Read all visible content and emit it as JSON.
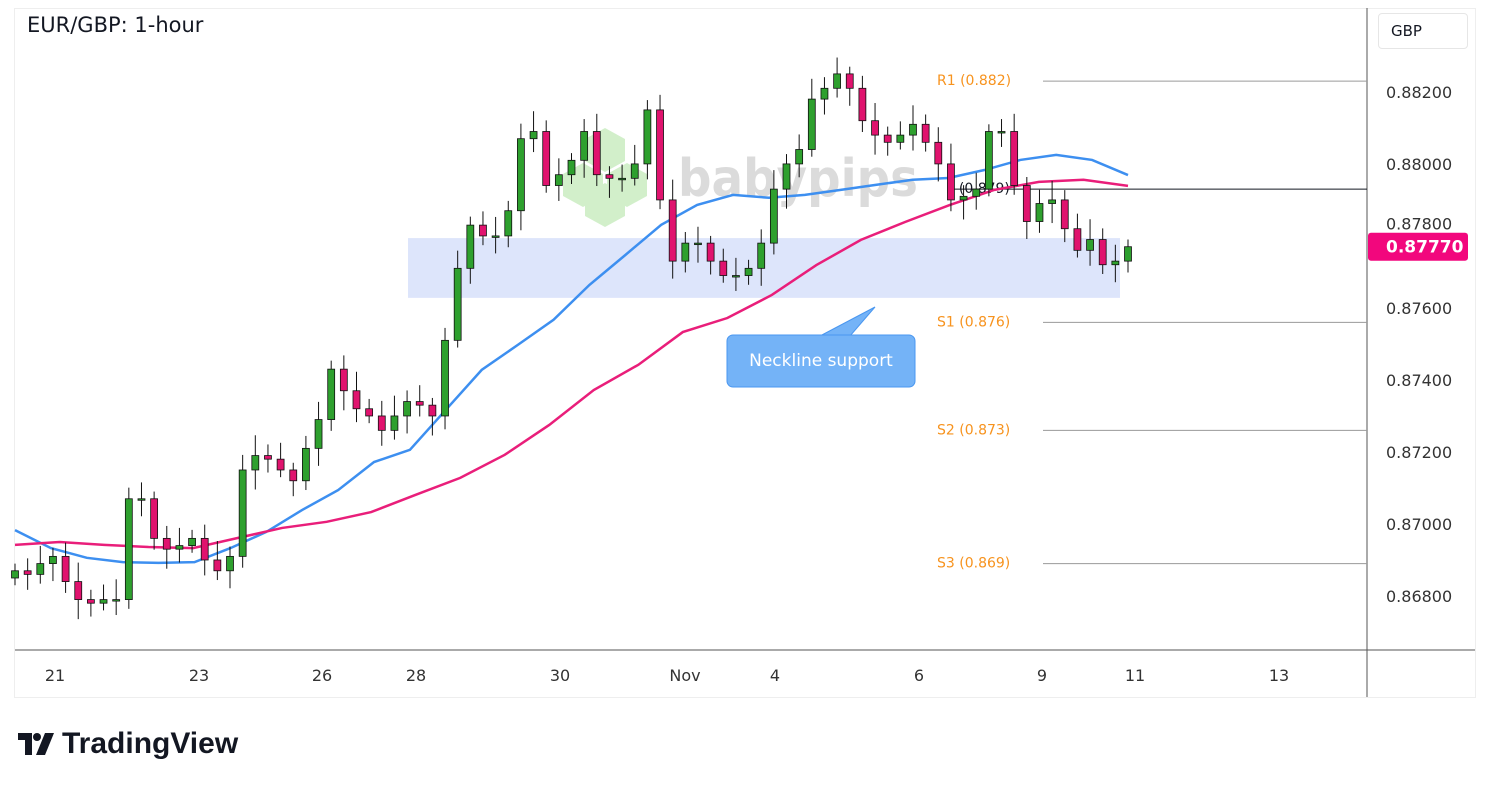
{
  "header": {
    "title": "EUR/GBP: 1-hour",
    "currency": "GBP"
  },
  "watermark": "babypips",
  "logo": {
    "text": "TradingView"
  },
  "chart_data": {
    "type": "candlestick",
    "title": "EUR/GBP: 1-hour",
    "ylim": [
      0.8665,
      0.88433
    ],
    "y_ticks": [
      "0.88200",
      "0.88000",
      "0.87800",
      "0.87600",
      "0.87400",
      "0.87200",
      "0.87000",
      "0.86800"
    ],
    "y_tick_values": [
      0.882,
      0.88,
      0.878,
      0.876,
      0.874,
      0.872,
      0.87,
      0.868
    ],
    "x_ticks": [
      "21",
      "23",
      "26",
      "28",
      "30",
      "Nov",
      "4",
      "6",
      "9",
      "11",
      "13"
    ],
    "closes": [
      0.8687,
      0.8686,
      0.8689,
      0.8691,
      0.8684,
      0.8679,
      0.8678,
      0.8679,
      0.8679,
      0.8707,
      0.8707,
      0.8696,
      0.8693,
      0.8694,
      0.8696,
      0.869,
      0.8687,
      0.8691,
      0.8715,
      0.8719,
      0.8718,
      0.8715,
      0.8712,
      0.8721,
      0.8729,
      0.8743,
      0.8737,
      0.8732,
      0.873,
      0.8726,
      0.873,
      0.8734,
      0.8733,
      0.873,
      0.8751,
      0.8771,
      0.8783,
      0.878,
      0.878,
      0.8787,
      0.8807,
      0.8809,
      0.8794,
      0.8797,
      0.8801,
      0.8809,
      0.8797,
      0.8796,
      0.8796,
      0.88,
      0.8815,
      0.879,
      0.8773,
      0.8778,
      0.8778,
      0.8773,
      0.8769,
      0.8769,
      0.8771,
      0.8778,
      0.8793,
      0.88,
      0.8804,
      0.8818,
      0.8821,
      0.8825,
      0.8821,
      0.8812,
      0.8808,
      0.8806,
      0.8808,
      0.8811,
      0.8806,
      0.88,
      0.879,
      0.8791,
      0.8793,
      0.8809,
      0.8809,
      0.8794,
      0.8784,
      0.8789,
      0.879,
      0.8782,
      0.8776,
      0.8779,
      0.8772,
      0.8773,
      0.8777
    ],
    "moving_averages": [
      {
        "color": "#3d8ff0",
        "values": [
          0.86983,
          0.86933,
          0.86906,
          0.86894,
          0.86892,
          0.86894,
          0.86933,
          0.86978,
          0.87039,
          0.87094,
          0.87172,
          0.87206,
          0.87317,
          0.87428,
          0.87497,
          0.87567,
          0.87664,
          0.87747,
          0.87831,
          0.87886,
          0.87914,
          0.87906,
          0.87914,
          0.87928,
          0.87942,
          0.87956,
          0.87961,
          0.87983,
          0.88011,
          0.88025,
          0.88011,
          0.87969
        ]
      },
      {
        "color": "#e91e7a",
        "values": [
          0.86942,
          0.8695,
          0.86942,
          0.86936,
          0.86933,
          0.86961,
          0.86989,
          0.87006,
          0.87033,
          0.87081,
          0.87128,
          0.87192,
          0.87275,
          0.87372,
          0.87442,
          0.87533,
          0.87572,
          0.87636,
          0.87719,
          0.87789,
          0.87839,
          0.87886,
          0.87928,
          0.8795,
          0.87956,
          0.87939
        ]
      }
    ],
    "support_zone": [
      0.87628,
      0.87794
    ],
    "levels": [
      {
        "label": "R1 (0.882)",
        "value": 0.8823,
        "color": "#f7931e"
      },
      {
        "label": "P (0.879)",
        "value": 0.8793,
        "color": "#131722"
      },
      {
        "label": "S1 (0.876)",
        "value": 0.8756,
        "color": "#f7931e"
      },
      {
        "label": "S2 (0.873)",
        "value": 0.8726,
        "color": "#f7931e"
      },
      {
        "label": "S3 (0.869)",
        "value": 0.8689,
        "color": "#f7931e"
      }
    ],
    "annotation": "Neckline support",
    "last_price": "0.87770",
    "colors": {
      "up": "#2ea02e",
      "down": "#e0136e",
      "price_tag": "#f2077d",
      "zone": "#dde5fb",
      "callout": "#74b3f7"
    }
  }
}
